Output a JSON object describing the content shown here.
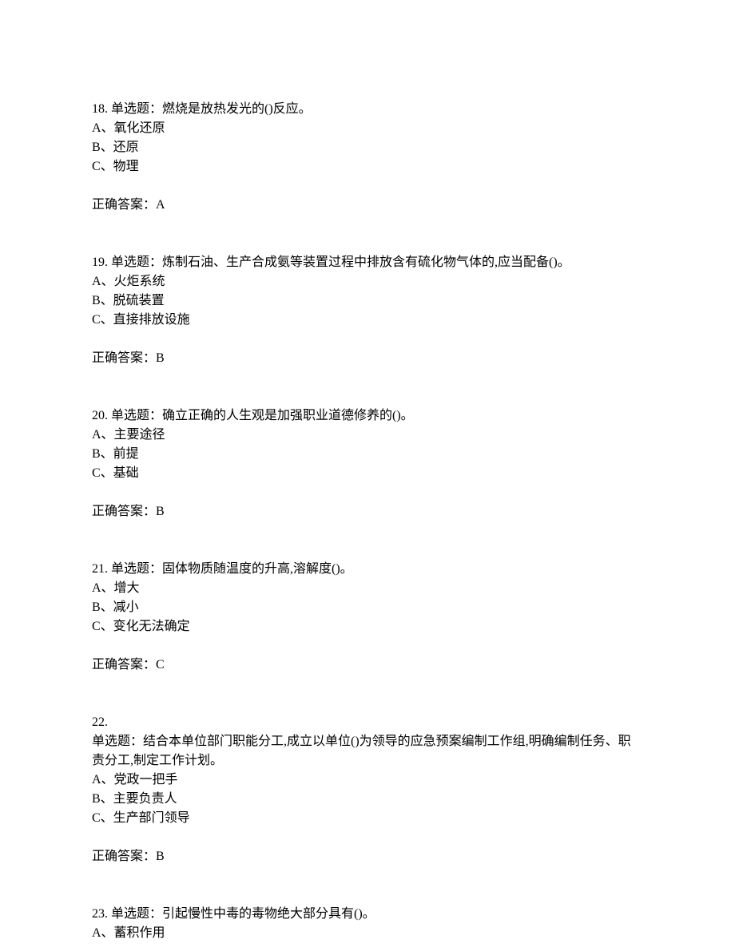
{
  "questions": [
    {
      "number": "18.",
      "type": "单选题：",
      "text": "燃烧是放热发光的()反应。",
      "options": [
        "A、氧化还原",
        "B、还原",
        "C、物理"
      ],
      "answer_label": "正确答案：",
      "answer": "A"
    },
    {
      "number": "19.",
      "type": "单选题：",
      "text": "炼制石油、生产合成氨等装置过程中排放含有硫化物气体的,应当配备()。",
      "options": [
        "A、火炬系统",
        "B、脱硫装置",
        "C、直接排放设施"
      ],
      "answer_label": "正确答案：",
      "answer": "B"
    },
    {
      "number": "20.",
      "type": "单选题：",
      "text": "确立正确的人生观是加强职业道德修养的()。",
      "options": [
        "A、主要途径",
        "B、前提",
        "C、基础"
      ],
      "answer_label": "正确答案：",
      "answer": "B"
    },
    {
      "number": "21.",
      "type": "单选题：",
      "text": "固体物质随温度的升高,溶解度()。",
      "options": [
        "A、增大",
        "B、减小",
        "C、变化无法确定"
      ],
      "answer_label": "正确答案：",
      "answer": "C"
    },
    {
      "number": "22.",
      "type": "单选题：",
      "text": "结合本单位部门职能分工,成立以单位()为领导的应急预案编制工作组,明确编制任务、职责分工,制定工作计划。",
      "options": [
        "A、党政一把手",
        "B、主要负责人",
        "C、生产部门领导"
      ],
      "answer_label": "正确答案：",
      "answer": "B",
      "split_number": true
    },
    {
      "number": "23.",
      "type": "单选题：",
      "text": "引起慢性中毒的毒物绝大部分具有()。",
      "options": [
        "A、蓄积作用"
      ],
      "answer_label": "",
      "answer": ""
    }
  ]
}
